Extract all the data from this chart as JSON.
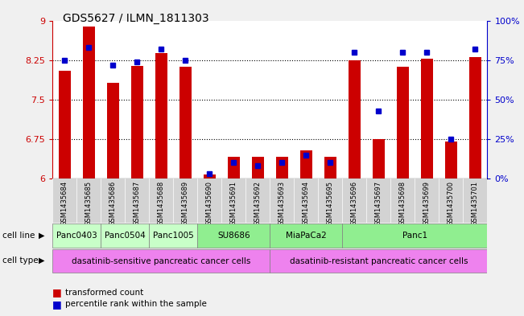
{
  "title": "GDS5627 / ILMN_1811303",
  "samples": [
    "GSM1435684",
    "GSM1435685",
    "GSM1435686",
    "GSM1435687",
    "GSM1435688",
    "GSM1435689",
    "GSM1435690",
    "GSM1435691",
    "GSM1435692",
    "GSM1435693",
    "GSM1435694",
    "GSM1435695",
    "GSM1435696",
    "GSM1435697",
    "GSM1435698",
    "GSM1435699",
    "GSM1435700",
    "GSM1435701"
  ],
  "red_values": [
    8.05,
    8.88,
    7.82,
    8.14,
    8.38,
    8.12,
    6.08,
    6.42,
    6.42,
    6.42,
    6.54,
    6.42,
    8.25,
    6.75,
    8.12,
    8.28,
    6.7,
    8.3
  ],
  "blue_values": [
    75,
    83,
    72,
    74,
    82,
    75,
    3,
    10,
    8,
    10,
    15,
    10,
    80,
    43,
    80,
    80,
    25,
    82
  ],
  "ylim_left": [
    6.0,
    9.0
  ],
  "ylim_right": [
    0,
    100
  ],
  "yticks_left": [
    6.0,
    6.75,
    7.5,
    8.25,
    9.0
  ],
  "yticks_right": [
    0,
    25,
    50,
    75,
    100
  ],
  "ytick_labels_left": [
    "6",
    "6.75",
    "7.5",
    "8.25",
    "9"
  ],
  "ytick_labels_right": [
    "0%",
    "25%",
    "50%",
    "75%",
    "100%"
  ],
  "hlines": [
    6.75,
    7.5,
    8.25
  ],
  "cell_line_defs": [
    {
      "label": "Panc0403",
      "indices": [
        0,
        1
      ],
      "color": "#c8ffc8"
    },
    {
      "label": "Panc0504",
      "indices": [
        2,
        3
      ],
      "color": "#c8ffc8"
    },
    {
      "label": "Panc1005",
      "indices": [
        4,
        5
      ],
      "color": "#c8ffc8"
    },
    {
      "label": "SU8686",
      "indices": [
        6,
        7,
        8
      ],
      "color": "#90ee90"
    },
    {
      "label": "MiaPaCa2",
      "indices": [
        9,
        10,
        11
      ],
      "color": "#90ee90"
    },
    {
      "label": "Panc1",
      "indices": [
        12,
        13,
        14,
        15,
        16,
        17
      ],
      "color": "#90ee90"
    }
  ],
  "cell_type_defs": [
    {
      "label": "dasatinib-sensitive pancreatic cancer cells",
      "start": 0,
      "end": 8,
      "color": "#ee82ee"
    },
    {
      "label": "dasatinib-resistant pancreatic cancer cells",
      "start": 9,
      "end": 17,
      "color": "#ee82ee"
    }
  ],
  "bar_color": "#cc0000",
  "dot_color": "#0000cc",
  "left_axis_color": "#cc0000",
  "right_axis_color": "#0000cc",
  "xtick_bg_color": "#d3d3d3",
  "fig_bg_color": "#f0f0f0"
}
